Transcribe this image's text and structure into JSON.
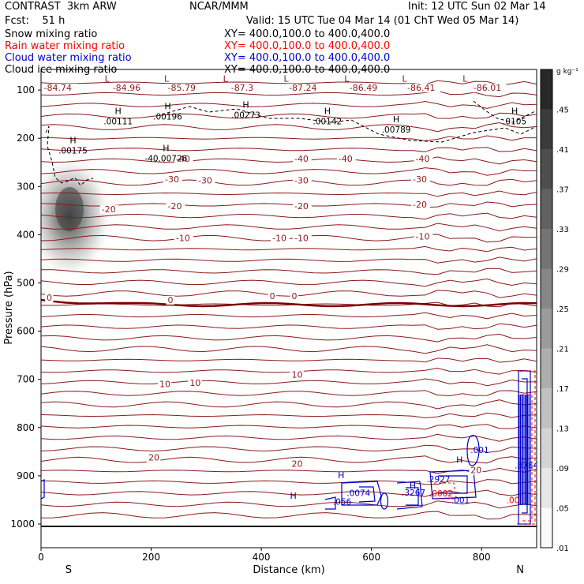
{
  "header": {
    "model": "CONTRAST  3km ARW",
    "org": "NCAR/MMM",
    "init": "Init: 12 UTC Sun 02 Mar 14",
    "fcst": "Fcst:    51 h",
    "valid": "Valid: 15 UTC Tue 04 Mar 14 (01 ChT Wed 05 Mar 14)",
    "fields": [
      {
        "label": "Snow mixing ratio",
        "xy": "XY= 400.0,100.0 to 400.0,400.0",
        "color": "#000000"
      },
      {
        "label": "Rain water mixing ratio",
        "xy": "XY= 400.0,100.0 to 400.0,400.0",
        "color": "#ff0000"
      },
      {
        "label": "Cloud water mixing ratio",
        "xy": "XY= 400.0,100.0 to 400.0,400.0",
        "color": "#0000cc"
      },
      {
        "label": "Cloud ice mixing ratio",
        "xy": "XY= 400.0,100.0 to 400.0,400.0",
        "color": "#000000"
      }
    ]
  },
  "chart_data": {
    "type": "cross-section",
    "xlabel": "Distance (km)",
    "ylabel": "Pressure (hPa)",
    "xlim": [
      0,
      900
    ],
    "ylim": [
      1025,
      60
    ],
    "xticks": [
      0,
      200,
      400,
      600,
      800
    ],
    "yticks": [
      100,
      200,
      300,
      400,
      500,
      600,
      700,
      800,
      900,
      1000
    ],
    "endpoints": {
      "left": "S",
      "right": "N"
    },
    "colorbar": {
      "units": "g kg⁻¹",
      "levels": [
        ".45",
        ".41",
        ".37",
        ".33",
        ".29",
        ".25",
        ".21",
        ".17",
        ".13",
        ".09",
        ".05",
        ".01"
      ]
    },
    "temperature_labels": [
      {
        "x": 5,
        "p": 100,
        "text": "-84.74"
      },
      {
        "x": 130,
        "p": 100,
        "text": "-84.96"
      },
      {
        "x": 230,
        "p": 100,
        "text": "-85.79"
      },
      {
        "x": 345,
        "p": 100,
        "text": "-87.3"
      },
      {
        "x": 450,
        "p": 100,
        "text": "-87.24"
      },
      {
        "x": 560,
        "p": 100,
        "text": "-86.49"
      },
      {
        "x": 665,
        "p": 100,
        "text": "-86.41"
      },
      {
        "x": 785,
        "p": 100,
        "text": "-86.01"
      },
      {
        "x": 245,
        "p": 247,
        "text": "-40"
      },
      {
        "x": 460,
        "p": 247,
        "text": "-40"
      },
      {
        "x": 540,
        "p": 247,
        "text": "-40"
      },
      {
        "x": 680,
        "p": 247,
        "text": "-40"
      },
      {
        "x": 225,
        "p": 290,
        "text": "-30"
      },
      {
        "x": 285,
        "p": 292,
        "text": "-30"
      },
      {
        "x": 460,
        "p": 292,
        "text": "-30"
      },
      {
        "x": 675,
        "p": 290,
        "text": "-30"
      },
      {
        "x": 110,
        "p": 352,
        "text": "-20"
      },
      {
        "x": 230,
        "p": 345,
        "text": "-20"
      },
      {
        "x": 460,
        "p": 345,
        "text": "-20"
      },
      {
        "x": 675,
        "p": 342,
        "text": "-20"
      },
      {
        "x": 245,
        "p": 412,
        "text": "-10"
      },
      {
        "x": 420,
        "p": 412,
        "text": "-10"
      },
      {
        "x": 460,
        "p": 412,
        "text": "-10"
      },
      {
        "x": 680,
        "p": 408,
        "text": "-10"
      },
      {
        "x": 10,
        "p": 535,
        "text": "0"
      },
      {
        "x": 230,
        "p": 540,
        "text": "0"
      },
      {
        "x": 415,
        "p": 532,
        "text": "0"
      },
      {
        "x": 455,
        "p": 532,
        "text": "0"
      },
      {
        "x": 215,
        "p": 714,
        "text": "10"
      },
      {
        "x": 270,
        "p": 712,
        "text": "10"
      },
      {
        "x": 455,
        "p": 695,
        "text": "10"
      },
      {
        "x": 195,
        "p": 867,
        "text": "20"
      },
      {
        "x": 455,
        "p": 880,
        "text": "20"
      },
      {
        "x": 780,
        "p": 893,
        "text": "20"
      }
    ],
    "markers": [
      {
        "type": "L",
        "x": 120,
        "p": 83
      },
      {
        "type": "L",
        "x": 228,
        "p": 83
      },
      {
        "type": "L",
        "x": 335,
        "p": 83
      },
      {
        "type": "L",
        "x": 445,
        "p": 83
      },
      {
        "type": "L",
        "x": 555,
        "p": 83
      },
      {
        "type": "L",
        "x": 660,
        "p": 83
      },
      {
        "type": "L",
        "x": 770,
        "p": 83
      },
      {
        "type": "H",
        "x": 140,
        "p": 150,
        "value": ".00111"
      },
      {
        "type": "H",
        "x": 230,
        "p": 140,
        "value": ".00196"
      },
      {
        "type": "H",
        "x": 372,
        "p": 137,
        "value": ".00273"
      },
      {
        "type": "H",
        "x": 520,
        "p": 150,
        "value": ".00142"
      },
      {
        "type": "H",
        "x": 645,
        "p": 167,
        "value": ".00789"
      },
      {
        "type": "H",
        "x": 860,
        "p": 150,
        "value": ".0105"
      },
      {
        "type": "H",
        "x": 58,
        "p": 210,
        "value": ".00175"
      },
      {
        "type": "H",
        "x": 227,
        "p": 227,
        "value": "-40.00726"
      },
      {
        "type": "H",
        "x": 545,
        "p": 905,
        "value": "",
        "color": "#0000cc"
      },
      {
        "type": "H",
        "x": 458,
        "p": 948,
        "value": "",
        "color": "#0000cc"
      },
      {
        "type": "H",
        "x": 675,
        "p": 926,
        "value": "",
        "color": "#0000cc"
      },
      {
        "type": "H",
        "x": 760,
        "p": 873,
        "value": "",
        "color": "#0000cc"
      }
    ],
    "cloud_water_labels": [
      {
        "x": 530,
        "p": 960,
        "text": ".056"
      },
      {
        "x": 555,
        "p": 942,
        "text": ".0074"
      },
      {
        "x": 655,
        "p": 941,
        "text": ".3267"
      },
      {
        "x": 700,
        "p": 913,
        "text": ".2927"
      },
      {
        "x": 745,
        "p": 957,
        "text": ".001"
      },
      {
        "x": 780,
        "p": 853,
        "text": ".001"
      },
      {
        "x": 860,
        "p": 885,
        "text": ".8764"
      }
    ],
    "rain_water_labels": [
      {
        "x": 705,
        "p": 943,
        "text": ".0002"
      },
      {
        "x": 845,
        "p": 957,
        "text": ".00"
      }
    ]
  }
}
